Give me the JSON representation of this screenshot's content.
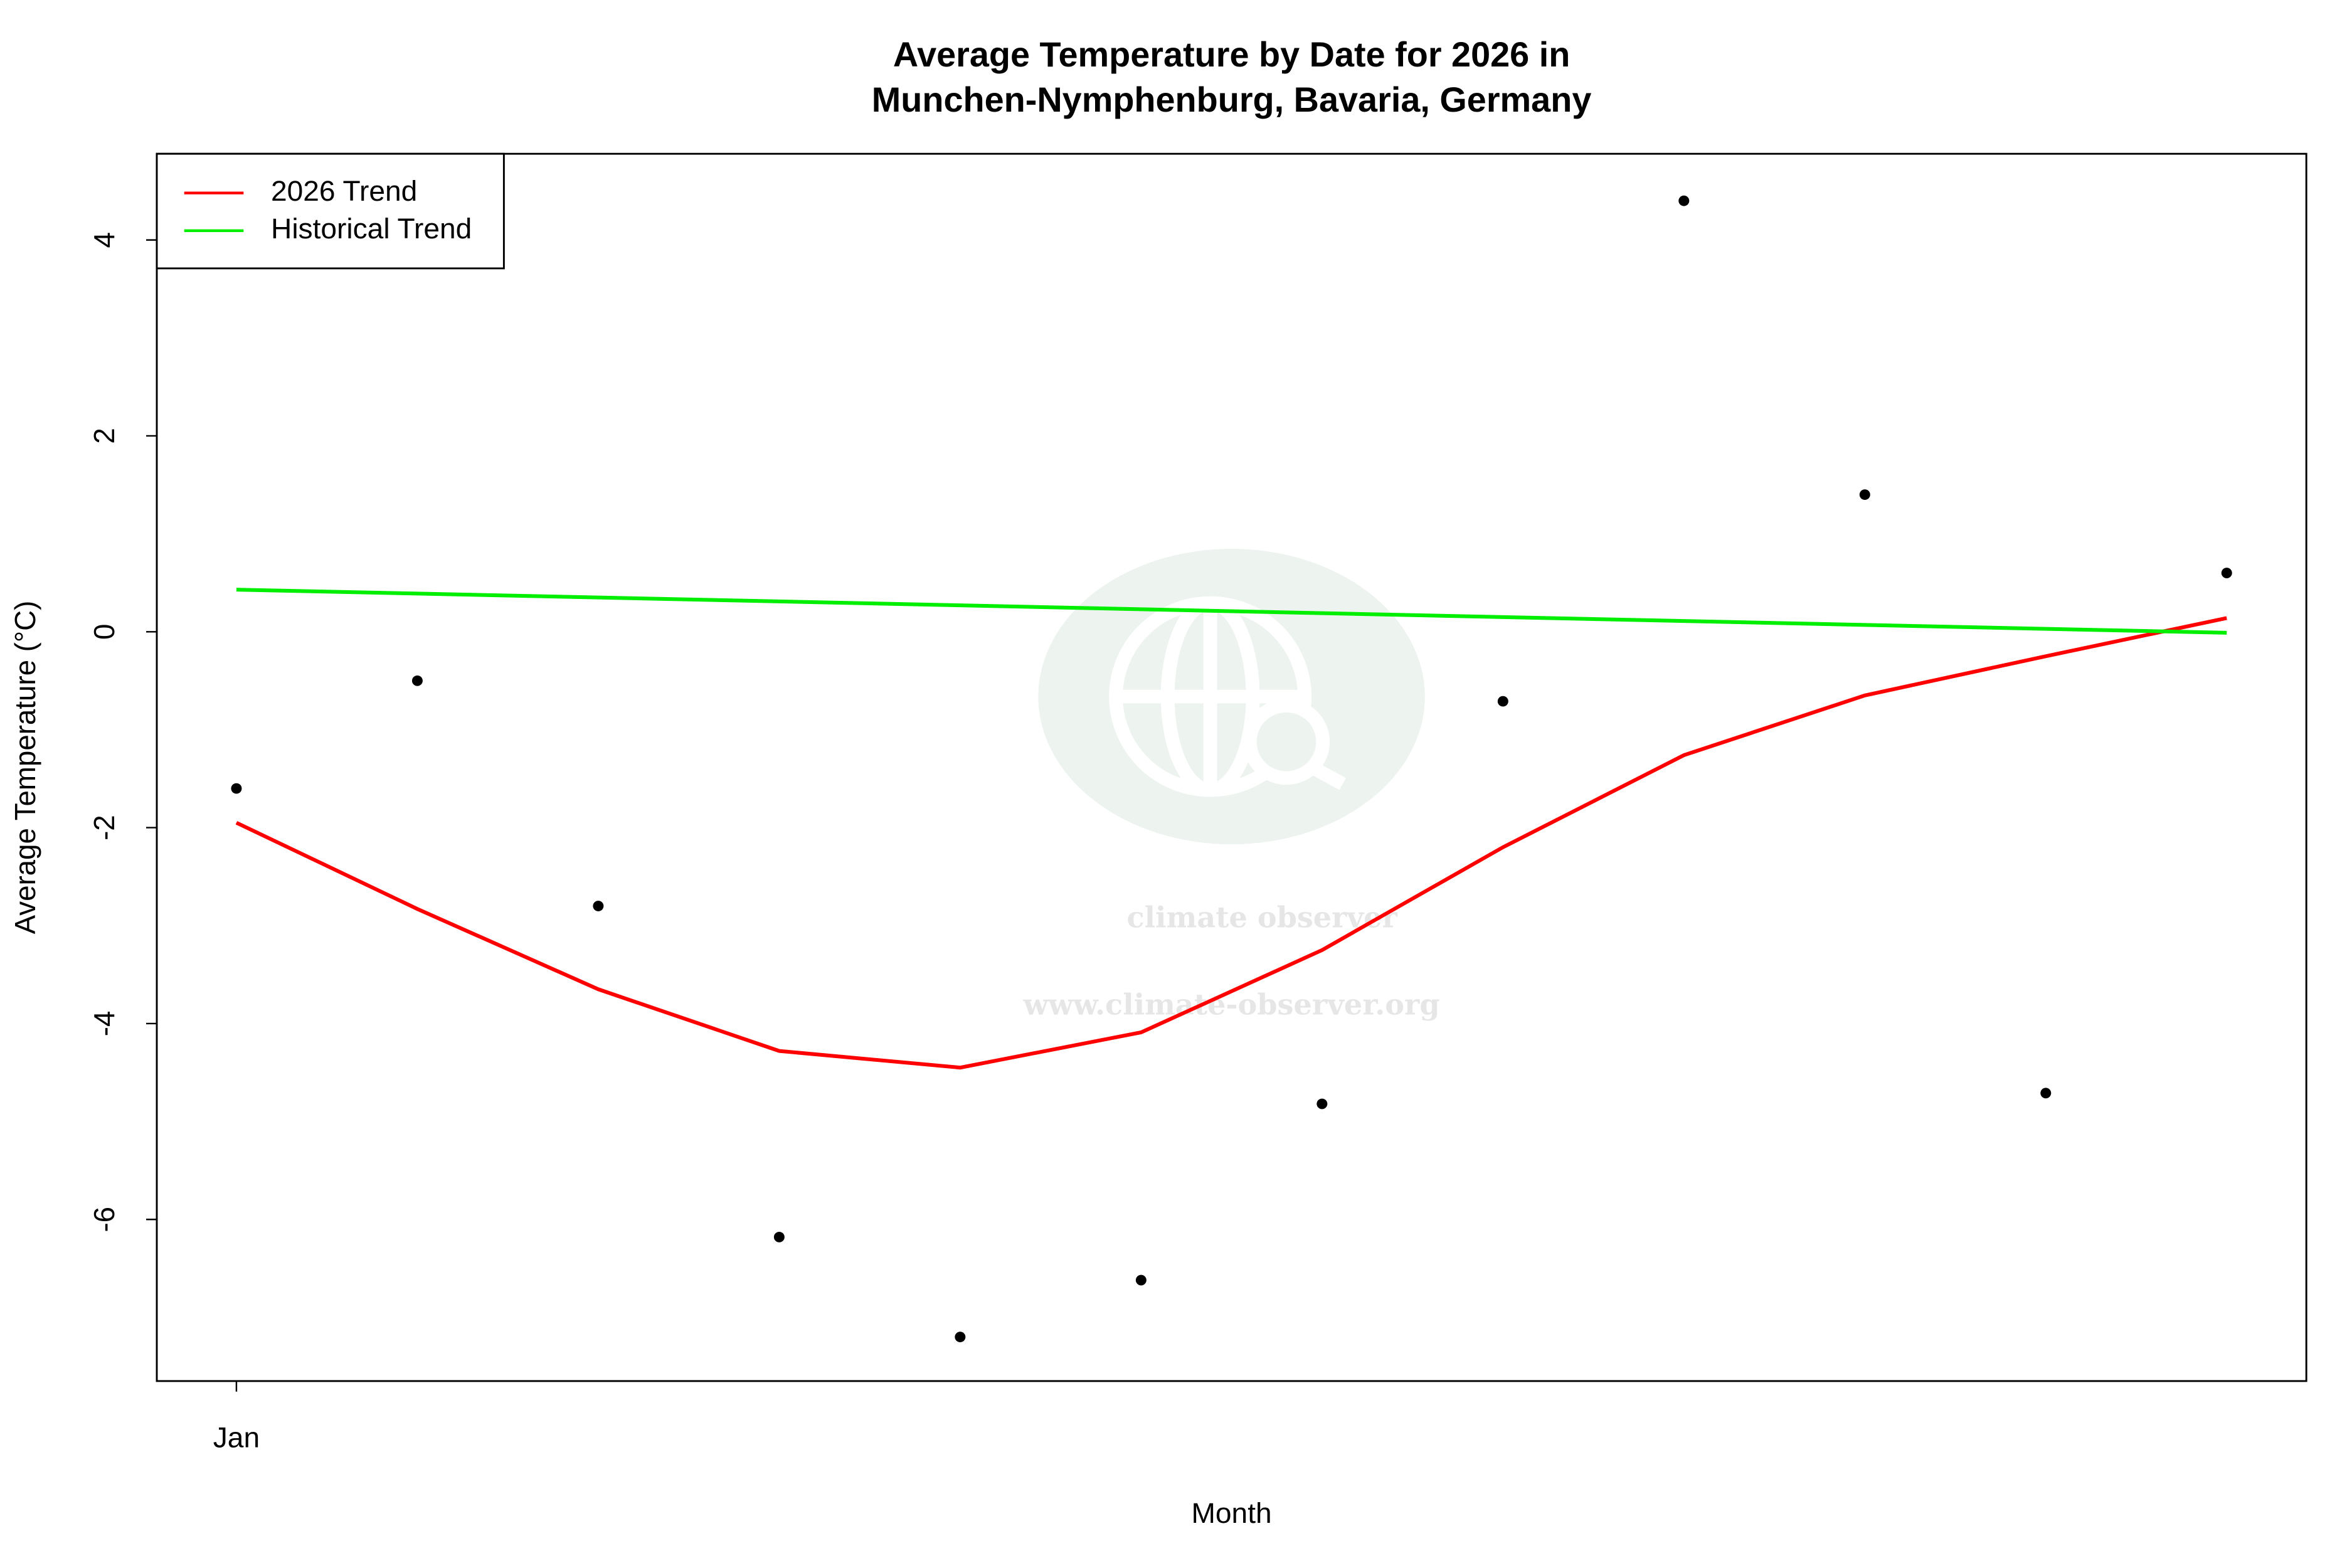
{
  "chart_data": {
    "type": "line",
    "title": "Average Temperature by Date for 2026 in",
    "subtitle": "Munchen-Nymphenburg, Bavaria, Germany",
    "x_label": "Month",
    "y_label": "Average Temperature (°C)",
    "watermark_text": "climate observer",
    "watermark_url": "www.climate-observer.org",
    "categories": [
      "Jan",
      null,
      null,
      null,
      null,
      null,
      null,
      null,
      null,
      null,
      null,
      null
    ],
    "points": {
      "color": "#000000",
      "values": [
        -1.6,
        -0.5,
        -2.8,
        -6.18,
        -7.2,
        -6.62,
        -4.82,
        -0.71,
        4.4,
        1.4,
        -4.71,
        0.6
      ]
    },
    "series": [
      {
        "name": "2026 Trend",
        "color": "#ff0000",
        "values": [
          -1.95,
          -2.83,
          -3.65,
          -4.28,
          -4.45,
          -4.09,
          -3.25,
          -2.2,
          -1.26,
          -0.65,
          -0.25,
          0.14
        ]
      },
      {
        "name": "Historical Trend",
        "color": "#00ee00",
        "values": [
          0.43,
          0.39,
          0.35,
          0.31,
          0.27,
          0.23,
          0.19,
          0.15,
          0.11,
          0.07,
          0.03,
          -0.01
        ]
      }
    ],
    "ylim": [
      -7.65,
      4.88
    ],
    "yticks": [
      -6,
      -4,
      -2,
      0,
      2,
      4
    ],
    "legend": "top-left"
  }
}
